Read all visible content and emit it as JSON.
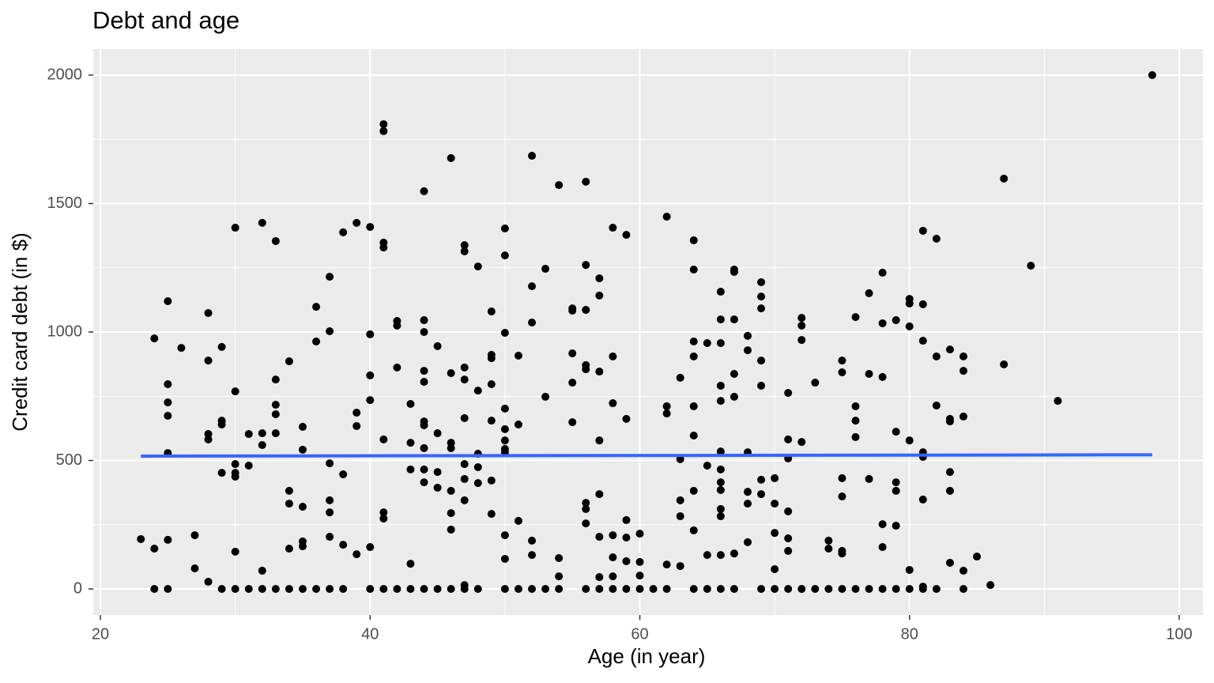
{
  "chart_data": {
    "type": "scatter",
    "title": "Debt and age",
    "x_label": "Age (in year)",
    "y_label": "Credit card debt (in $)",
    "xlim": [
      19.47,
      101.76
    ],
    "ylim": [
      -101.5,
      2101.5
    ],
    "xticks": [
      20,
      40,
      60,
      80,
      100
    ],
    "yticks": [
      0,
      500,
      1000,
      1500,
      2000
    ],
    "grid": true,
    "x": [
      23,
      24,
      24,
      24,
      25,
      25,
      25,
      25,
      25,
      25,
      25,
      26,
      27,
      27,
      28,
      28,
      28,
      28,
      28,
      29,
      29,
      29,
      29,
      29,
      30,
      30,
      30,
      30,
      30,
      30,
      30,
      31,
      31,
      31,
      32,
      32,
      32,
      32,
      32,
      33,
      33,
      33,
      33,
      33,
      33,
      34,
      34,
      34,
      34,
      34,
      35,
      35,
      35,
      35,
      35,
      35,
      36,
      36,
      36,
      37,
      37,
      37,
      37,
      37,
      37,
      37,
      38,
      38,
      38,
      38,
      39,
      39,
      39,
      39,
      40,
      40,
      40,
      40,
      40,
      40,
      41,
      41,
      41,
      41,
      41,
      41,
      41,
      41,
      42,
      42,
      42,
      42,
      43,
      43,
      43,
      43,
      43,
      44,
      44,
      44,
      44,
      44,
      44,
      44,
      44,
      44,
      44,
      44,
      45,
      45,
      45,
      45,
      45,
      46,
      46,
      46,
      46,
      46,
      46,
      46,
      46,
      47,
      47,
      47,
      47,
      47,
      47,
      47,
      47,
      47,
      47,
      48,
      48,
      48,
      48,
      48,
      48,
      49,
      49,
      49,
      49,
      49,
      49,
      49,
      50,
      50,
      50,
      50,
      50,
      50,
      50,
      50,
      50,
      50,
      50,
      51,
      51,
      51,
      51,
      52,
      52,
      52,
      52,
      52,
      52,
      53,
      53,
      53,
      54,
      54,
      54,
      54,
      55,
      55,
      55,
      55,
      55,
      56,
      56,
      56,
      56,
      56,
      56,
      56,
      56,
      56,
      57,
      57,
      57,
      57,
      57,
      57,
      57,
      57,
      58,
      58,
      58,
      58,
      58,
      58,
      58,
      59,
      59,
      59,
      59,
      59,
      59,
      60,
      60,
      60,
      60,
      61,
      62,
      62,
      62,
      62,
      62,
      63,
      63,
      63,
      63,
      63,
      64,
      64,
      64,
      64,
      64,
      64,
      64,
      64,
      64,
      65,
      65,
      65,
      65,
      66,
      66,
      66,
      66,
      66,
      66,
      66,
      66,
      66,
      66,
      66,
      66,
      66,
      67,
      67,
      67,
      67,
      67,
      67,
      67,
      68,
      68,
      68,
      68,
      68,
      68,
      69,
      69,
      69,
      69,
      69,
      69,
      69,
      69,
      70,
      70,
      70,
      70,
      70,
      71,
      71,
      71,
      71,
      71,
      71,
      71,
      72,
      72,
      72,
      72,
      72,
      73,
      73,
      74,
      74,
      74,
      75,
      75,
      75,
      75,
      75,
      75,
      75,
      76,
      76,
      76,
      76,
      76,
      77,
      77,
      77,
      77,
      78,
      78,
      78,
      78,
      78,
      78,
      79,
      79,
      79,
      79,
      79,
      79,
      80,
      80,
      80,
      80,
      80,
      80,
      81,
      81,
      81,
      81,
      81,
      81,
      81,
      81,
      82,
      82,
      82,
      82,
      83,
      83,
      83,
      83,
      83,
      83,
      84,
      84,
      84,
      84,
      84,
      85,
      86,
      87,
      87,
      89,
      91,
      98
    ],
    "series": [
      {
        "color": "#000000",
        "values": [
          194,
          975,
          157,
          0,
          1120,
          797,
          726,
          674,
          529,
          191,
          0,
          938,
          209,
          80,
          1074,
          889,
          603,
          582,
          28,
          942,
          655,
          640,
          452,
          0,
          1406,
          769,
          486,
          452,
          437,
          145,
          0,
          603,
          480,
          0,
          1425,
          606,
          560,
          71,
          0,
          1354,
          815,
          717,
          680,
          606,
          0,
          886,
          382,
          332,
          157,
          0,
          631,
          542,
          320,
          185,
          166,
          0,
          1098,
          963,
          0,
          1215,
          1003,
          489,
          345,
          298,
          203,
          0,
          1388,
          446,
          172,
          0,
          1425,
          686,
          634,
          135,
          1409,
          991,
          831,
          735,
          163,
          0,
          1809,
          1782,
          1348,
          1329,
          582,
          298,
          274,
          0,
          1043,
          1025,
          862,
          0,
          720,
          569,
          465,
          98,
          0,
          1548,
          1046,
          1000,
          849,
          806,
          652,
          637,
          548,
          465,
          415,
          0,
          945,
          606,
          455,
          394,
          0,
          1677,
          840,
          569,
          548,
          382,
          295,
          231,
          0,
          1338,
          1314,
          862,
          815,
          665,
          486,
          428,
          345,
          15,
          0,
          1255,
          772,
          526,
          474,
          412,
          0,
          1080,
          911,
          898,
          797,
          655,
          422,
          292,
          1403,
          1298,
          997,
          702,
          622,
          578,
          545,
          532,
          209,
          117,
          0,
          908,
          640,
          265,
          0,
          1686,
          1178,
          1037,
          188,
          132,
          0,
          1246,
          748,
          0,
          1572,
          120,
          49,
          0,
          1092,
          1083,
          917,
          803,
          649,
          1585,
          1261,
          1086,
          871,
          855,
          335,
          311,
          255,
          0,
          1209,
          1142,
          846,
          578,
          369,
          203,
          46,
          0,
          1406,
          905,
          723,
          209,
          123,
          49,
          0,
          1378,
          662,
          268,
          200,
          108,
          0,
          215,
          105,
          52,
          0,
          0,
          1449,
          711,
          683,
          95,
          0,
          822,
          505,
          345,
          283,
          89,
          1357,
          1243,
          963,
          905,
          711,
          597,
          382,
          228,
          0,
          957,
          480,
          132,
          0,
          1157,
          1049,
          957,
          791,
          732,
          535,
          465,
          415,
          385,
          311,
          283,
          132,
          0,
          1243,
          1234,
          1049,
          837,
          748,
          138,
          0,
          985,
          929,
          532,
          378,
          332,
          182,
          1194,
          1138,
          1092,
          889,
          791,
          425,
          369,
          0,
          431,
          332,
          218,
          77,
          0,
          763,
          582,
          508,
          302,
          197,
          148,
          0,
          1055,
          1025,
          969,
          572,
          0,
          803,
          0,
          188,
          157,
          0,
          889,
          843,
          431,
          360,
          148,
          138,
          0,
          1058,
          711,
          655,
          591,
          0,
          1151,
          837,
          428,
          0,
          1231,
          1034,
          825,
          252,
          163,
          0,
          1046,
          612,
          415,
          382,
          246,
          0,
          1129,
          1111,
          1022,
          578,
          74,
          0,
          1394,
          1108,
          966,
          532,
          514,
          348,
          9,
          0,
          1363,
          905,
          714,
          0,
          932,
          662,
          652,
          455,
          382,
          102,
          905,
          849,
          671,
          71,
          0,
          126,
          15,
          1597,
          874,
          1258,
          732,
          2000
        ]
      }
    ],
    "trend": {
      "color": "#3366ff",
      "x": [
        23,
        98
      ],
      "values": [
        517,
        522
      ]
    }
  }
}
